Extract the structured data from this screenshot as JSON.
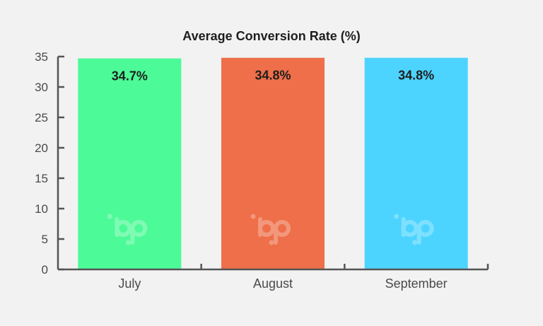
{
  "chart_data": {
    "type": "bar",
    "title": "Average Conversion Rate (%)",
    "categories": [
      "July",
      "August",
      "September"
    ],
    "values": [
      34.7,
      34.8,
      34.8
    ],
    "data_labels": [
      "34.7%",
      "34.8%",
      "34.8%"
    ],
    "colors": [
      "#4dfa98",
      "#ee6f4a",
      "#4cd4ff"
    ],
    "xlabel": "",
    "ylabel": "",
    "ylim": [
      0,
      35
    ],
    "yticks": [
      0,
      5,
      10,
      15,
      20,
      25,
      30,
      35
    ],
    "grid": false,
    "legend": "none",
    "watermark": "bp"
  }
}
